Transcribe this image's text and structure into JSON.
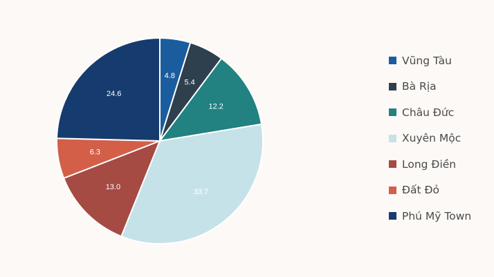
{
  "chart_data": {
    "type": "pie",
    "start_angle_deg": 0,
    "direction": "clockwise",
    "legend_position": "right",
    "slices": [
      {
        "label": "Vũng Tàu",
        "value": 4.8,
        "value_label": "4.8",
        "color": "#1a5d9e",
        "text_color": "#ffffff"
      },
      {
        "label": "Bà Rịa",
        "value": 5.4,
        "value_label": "5.4",
        "color": "#2e3f4d",
        "text_color": "#ffffff"
      },
      {
        "label": "Châu Đức",
        "value": 12.2,
        "value_label": "12.2",
        "color": "#228181",
        "text_color": "#ffffff"
      },
      {
        "label": "Xuyên Mộc",
        "value": 33.7,
        "value_label": "33.7",
        "color": "#c5e2e8",
        "text_color": "#ffffff"
      },
      {
        "label": "Long Điền",
        "value": 13.0,
        "value_label": "13.0",
        "color": "#a64a44",
        "text_color": "#ffffff"
      },
      {
        "label": "Đất Đỏ",
        "value": 6.3,
        "value_label": "6.3",
        "color": "#d35f49",
        "text_color": "#ffffff"
      },
      {
        "label": "Phú Mỹ Town",
        "value": 24.6,
        "value_label": "24.6",
        "color": "#163b6e",
        "text_color": "#ffffff"
      }
    ]
  }
}
